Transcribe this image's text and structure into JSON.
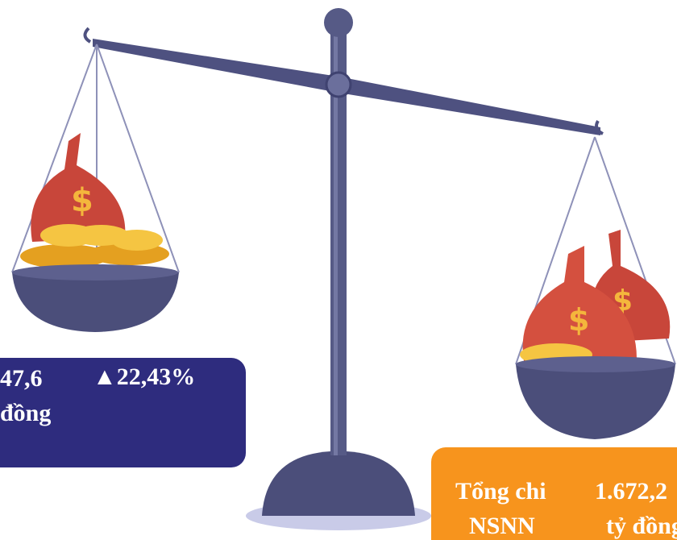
{
  "left_box": {
    "lines": [
      "47,6",
      "đồng"
    ],
    "change": "▲22,43%"
  },
  "right_box": {
    "label_lines": [
      "Tổng chi",
      "NSNN"
    ],
    "value_lines": [
      "1.672,2",
      "tỷ đồng"
    ]
  }
}
